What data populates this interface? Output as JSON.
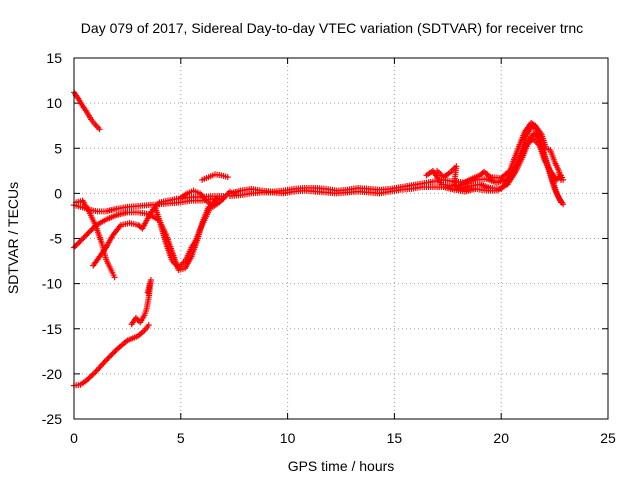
{
  "chart_data": {
    "type": "scatter",
    "title": "Day 079 of 2017, Sidereal Day-to-day VTEC variation (SDTVAR) for receiver trnc",
    "xlabel": "GPS time / hours",
    "ylabel": "SDTVAR / TECUs",
    "xlim": [
      0,
      25
    ],
    "ylim": [
      -25,
      15
    ],
    "grid": true,
    "marker": "+",
    "x_ticks": [
      {
        "value": 0,
        "label": "0"
      },
      {
        "value": 5,
        "label": "5"
      },
      {
        "value": 10,
        "label": "10"
      },
      {
        "value": 15,
        "label": "15"
      },
      {
        "value": 20,
        "label": "20"
      },
      {
        "value": 25,
        "label": "25"
      }
    ],
    "y_ticks": [
      {
        "value": 15,
        "label": "15"
      },
      {
        "value": 10,
        "label": "10"
      },
      {
        "value": 5,
        "label": "5"
      },
      {
        "value": 0,
        "label": "0"
      },
      {
        "value": -5,
        "label": "-5"
      },
      {
        "value": -10,
        "label": "-10"
      },
      {
        "value": -15,
        "label": "-15"
      },
      {
        "value": -20,
        "label": "-20"
      },
      {
        "value": -25,
        "label": "-25"
      }
    ],
    "series_color": "#ff0000",
    "series": [
      {
        "name": "arc-a",
        "points": [
          [
            0.0,
            11.2
          ],
          [
            0.2,
            10.5
          ],
          [
            0.4,
            9.7
          ],
          [
            0.6,
            9.0
          ],
          [
            0.8,
            8.2
          ],
          [
            1.0,
            7.6
          ],
          [
            1.2,
            7.1
          ]
        ]
      },
      {
        "name": "arc-b",
        "points": [
          [
            0.0,
            -21.3
          ],
          [
            0.3,
            -21.2
          ],
          [
            0.6,
            -20.7
          ],
          [
            1.0,
            -19.8
          ],
          [
            1.5,
            -18.5
          ],
          [
            2.0,
            -17.3
          ],
          [
            2.5,
            -16.3
          ],
          [
            3.0,
            -15.8
          ],
          [
            3.3,
            -15.2
          ],
          [
            3.5,
            -14.6
          ]
        ]
      },
      {
        "name": "arc-b-scatter",
        "points": [
          [
            2.7,
            -14.5
          ],
          [
            2.9,
            -13.8
          ],
          [
            3.1,
            -14.3
          ],
          [
            3.3,
            -13.5
          ],
          [
            3.4,
            -12.8
          ],
          [
            3.5,
            -11.5
          ],
          [
            3.55,
            -10.5
          ],
          [
            3.6,
            -9.6
          ],
          [
            3.45,
            -11.0
          ]
        ]
      },
      {
        "name": "arc-c",
        "points": [
          [
            0.0,
            -1.3
          ],
          [
            0.3,
            -1.5
          ],
          [
            0.6,
            -1.7
          ],
          [
            0.9,
            -1.9
          ],
          [
            1.1,
            -2.0
          ],
          [
            1.5,
            -2.0
          ],
          [
            2.0,
            -1.7
          ],
          [
            2.5,
            -1.5
          ],
          [
            3.0,
            -1.4
          ],
          [
            3.5,
            -1.3
          ],
          [
            4.0,
            -1.2
          ],
          [
            4.5,
            -1.1
          ],
          [
            5.0,
            -1.0
          ],
          [
            5.5,
            -0.8
          ],
          [
            6.0,
            -0.8
          ],
          [
            6.5,
            -0.6
          ],
          [
            7.0,
            -0.6
          ]
        ]
      },
      {
        "name": "arc-c-drop",
        "points": [
          [
            0.0,
            -6.0
          ],
          [
            0.5,
            -4.8
          ],
          [
            1.0,
            -3.6
          ],
          [
            1.5,
            -2.9
          ],
          [
            2.0,
            -2.4
          ],
          [
            2.5,
            -2.1
          ],
          [
            3.0,
            -2.1
          ],
          [
            3.5,
            -2.3
          ],
          [
            4.0,
            -3.0
          ],
          [
            4.3,
            -4.5
          ],
          [
            4.6,
            -6.5
          ],
          [
            4.9,
            -8.5
          ],
          [
            5.2,
            -8.3
          ],
          [
            5.5,
            -7.0
          ],
          [
            5.8,
            -5.0
          ],
          [
            6.0,
            -3.3
          ],
          [
            6.3,
            -1.5
          ]
        ]
      },
      {
        "name": "arc-d",
        "points": [
          [
            0.1,
            -1.0
          ],
          [
            0.4,
            -0.8
          ],
          [
            0.7,
            -2.0
          ],
          [
            1.0,
            -3.5
          ],
          [
            1.3,
            -5.5
          ],
          [
            1.5,
            -7.3
          ],
          [
            1.8,
            -8.8
          ],
          [
            1.9,
            -9.3
          ]
        ]
      },
      {
        "name": "arc-e",
        "points": [
          [
            0.9,
            -8.0
          ],
          [
            1.2,
            -7.0
          ],
          [
            1.5,
            -6.0
          ],
          [
            1.8,
            -4.7
          ],
          [
            2.2,
            -3.5
          ],
          [
            2.6,
            -3.3
          ],
          [
            3.0,
            -3.5
          ],
          [
            3.2,
            -3.9
          ],
          [
            3.4,
            -3.0
          ],
          [
            3.7,
            -1.8
          ],
          [
            4.0,
            -1.0
          ],
          [
            4.4,
            -0.8
          ],
          [
            4.8,
            -0.6
          ],
          [
            5.2,
            -0.5
          ],
          [
            5.6,
            -0.4
          ],
          [
            6.0,
            -0.4
          ],
          [
            6.5,
            -0.3
          ],
          [
            7.0,
            -0.3
          ]
        ]
      },
      {
        "name": "arc-f",
        "points": [
          [
            3.8,
            -1.5
          ],
          [
            4.0,
            -3.0
          ],
          [
            4.3,
            -5.5
          ],
          [
            4.6,
            -7.5
          ],
          [
            4.9,
            -8.2
          ],
          [
            5.2,
            -7.5
          ],
          [
            5.5,
            -6.0
          ],
          [
            5.7,
            -5.2
          ],
          [
            5.9,
            -4.0
          ],
          [
            6.1,
            -3.0
          ],
          [
            6.4,
            -1.5
          ],
          [
            6.7,
            -0.5
          ]
        ]
      },
      {
        "name": "arc-g",
        "points": [
          [
            5.0,
            -0.5
          ],
          [
            5.3,
            0.0
          ],
          [
            5.6,
            0.3
          ],
          [
            5.9,
            0.0
          ],
          [
            6.2,
            -0.8
          ],
          [
            6.5,
            -1.5
          ],
          [
            6.8,
            -1.0
          ],
          [
            7.1,
            -0.3
          ],
          [
            7.3,
            0.2
          ]
        ]
      },
      {
        "name": "arc-h",
        "points": [
          [
            6.0,
            1.5
          ],
          [
            6.3,
            1.8
          ],
          [
            6.6,
            2.1
          ],
          [
            6.9,
            2.0
          ],
          [
            7.2,
            1.8
          ]
        ]
      },
      {
        "name": "arc-main-1",
        "points": [
          [
            7.3,
            0.0
          ],
          [
            7.8,
            0.3
          ],
          [
            8.3,
            0.5
          ],
          [
            8.8,
            0.3
          ],
          [
            9.3,
            0.2
          ],
          [
            9.8,
            0.3
          ],
          [
            10.3,
            0.5
          ],
          [
            10.8,
            0.6
          ],
          [
            11.3,
            0.6
          ],
          [
            11.8,
            0.5
          ],
          [
            12.3,
            0.3
          ],
          [
            12.8,
            0.4
          ],
          [
            13.3,
            0.6
          ],
          [
            13.8,
            0.5
          ],
          [
            14.3,
            0.4
          ],
          [
            14.8,
            0.5
          ],
          [
            15.3,
            0.7
          ],
          [
            15.8,
            0.9
          ],
          [
            16.3,
            1.1
          ],
          [
            16.8,
            1.3
          ],
          [
            17.3,
            1.5
          ],
          [
            17.8,
            1.3
          ],
          [
            18.3,
            1.2
          ],
          [
            18.8,
            1.5
          ],
          [
            19.3,
            1.6
          ],
          [
            19.8,
            1.2
          ],
          [
            20.3,
            1.6
          ],
          [
            20.7,
            3.0
          ],
          [
            21.0,
            5.0
          ],
          [
            21.2,
            6.5
          ],
          [
            21.4,
            7.4
          ],
          [
            21.6,
            7.2
          ],
          [
            21.8,
            6.0
          ],
          [
            22.0,
            4.5
          ],
          [
            22.2,
            3.0
          ],
          [
            22.4,
            1.5
          ],
          [
            22.6,
            0.0
          ],
          [
            22.8,
            -1.0
          ]
        ]
      },
      {
        "name": "arc-main-2",
        "points": [
          [
            7.3,
            -0.3
          ],
          [
            7.8,
            -0.2
          ],
          [
            8.3,
            0.0
          ],
          [
            8.8,
            0.1
          ],
          [
            9.3,
            0.1
          ],
          [
            9.8,
            0.0
          ],
          [
            10.3,
            0.2
          ],
          [
            10.8,
            0.3
          ],
          [
            11.3,
            0.2
          ],
          [
            11.8,
            0.1
          ],
          [
            12.3,
            0.0
          ],
          [
            12.8,
            0.1
          ],
          [
            13.3,
            0.2
          ],
          [
            13.8,
            0.1
          ],
          [
            14.3,
            0.0
          ],
          [
            14.8,
            0.2
          ],
          [
            15.3,
            0.4
          ],
          [
            15.8,
            0.5
          ],
          [
            16.3,
            0.7
          ],
          [
            16.8,
            0.7
          ],
          [
            17.3,
            0.7
          ],
          [
            17.8,
            0.4
          ],
          [
            18.3,
            0.2
          ],
          [
            18.8,
            0.5
          ],
          [
            19.3,
            0.3
          ],
          [
            19.8,
            0.3
          ],
          [
            20.3,
            1.0
          ],
          [
            20.7,
            2.5
          ],
          [
            21.0,
            4.0
          ],
          [
            21.3,
            5.8
          ],
          [
            21.5,
            6.6
          ],
          [
            21.7,
            6.3
          ],
          [
            21.9,
            5.0
          ],
          [
            22.1,
            3.5
          ],
          [
            22.3,
            2.0
          ],
          [
            22.5,
            0.5
          ],
          [
            22.7,
            -0.5
          ],
          [
            22.9,
            -1.2
          ]
        ]
      },
      {
        "name": "arc-main-3",
        "points": [
          [
            17.0,
            2.5
          ],
          [
            17.3,
            1.8
          ],
          [
            17.6,
            2.3
          ],
          [
            17.9,
            3.0
          ],
          [
            17.8,
            1.0
          ],
          [
            18.0,
            0.5
          ],
          [
            18.5,
            0.8
          ],
          [
            19.0,
            1.0
          ],
          [
            19.5,
            0.6
          ],
          [
            20.0,
            0.5
          ],
          [
            20.5,
            2.0
          ],
          [
            20.9,
            4.0
          ],
          [
            21.2,
            5.5
          ],
          [
            21.5,
            6.0
          ],
          [
            21.8,
            5.3
          ],
          [
            22.0,
            3.8
          ],
          [
            22.3,
            2.5
          ],
          [
            22.6,
            1.5
          ],
          [
            22.8,
            2.0
          ],
          [
            22.9,
            1.5
          ]
        ]
      },
      {
        "name": "arc-main-4",
        "points": [
          [
            16.5,
            2.0
          ],
          [
            16.8,
            2.5
          ],
          [
            17.0,
            1.8
          ],
          [
            17.2,
            1.0
          ],
          [
            17.5,
            0.9
          ],
          [
            18.0,
            0.8
          ],
          [
            18.5,
            1.5
          ],
          [
            19.0,
            2.0
          ],
          [
            19.2,
            2.4
          ],
          [
            19.5,
            1.8
          ],
          [
            20.0,
            1.7
          ],
          [
            20.4,
            2.5
          ],
          [
            20.8,
            5.0
          ],
          [
            21.1,
            6.8
          ],
          [
            21.4,
            7.8
          ],
          [
            21.6,
            7.5
          ],
          [
            21.9,
            6.5
          ],
          [
            22.1,
            5.0
          ],
          [
            22.3,
            4.8
          ],
          [
            22.5,
            3.5
          ],
          [
            22.7,
            2.5
          ],
          [
            22.8,
            1.5
          ]
        ]
      }
    ]
  }
}
